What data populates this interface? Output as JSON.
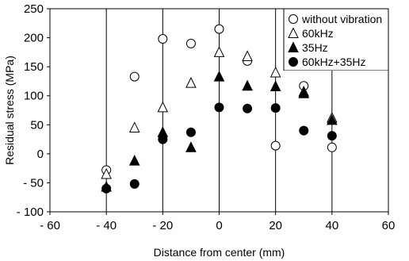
{
  "chart_data": {
    "type": "scatter",
    "xlabel": "Distance from center (mm)",
    "ylabel": "Residual stress (MPa)",
    "xlim": [
      -60,
      60
    ],
    "ylim": [
      -100,
      250
    ],
    "x_ticks": [
      -60,
      -40,
      -20,
      0,
      20,
      40,
      60
    ],
    "y_ticks": [
      -100,
      -50,
      0,
      50,
      100,
      150,
      200,
      250
    ],
    "x_tick_labels": [
      "- 60",
      "- 40",
      "- 20",
      "0",
      "20",
      "40",
      "60"
    ],
    "y_tick_labels": [
      "- 100",
      "- 50",
      "0",
      "50",
      "100",
      "150",
      "200",
      "250"
    ],
    "grid": "vertical",
    "legend_position": "top-right",
    "series": [
      {
        "name": "without vibration",
        "marker": "circle-open",
        "points": [
          [
            -40,
            -28
          ],
          [
            -30,
            133
          ],
          [
            -20,
            198
          ],
          [
            -10,
            190
          ],
          [
            0,
            215
          ],
          [
            10,
            160
          ],
          [
            20,
            14
          ],
          [
            30,
            117
          ],
          [
            40,
            11
          ]
        ]
      },
      {
        "name": "60kHz",
        "marker": "triangle-open",
        "points": [
          [
            -40,
            -35
          ],
          [
            -30,
            45
          ],
          [
            -20,
            80
          ],
          [
            -10,
            122
          ],
          [
            0,
            175
          ],
          [
            10,
            168
          ],
          [
            20,
            140
          ],
          [
            30,
            107
          ],
          [
            40,
            62
          ]
        ]
      },
      {
        "name": "35Hz",
        "marker": "triangle-filled",
        "points": [
          [
            -40,
            -57
          ],
          [
            -30,
            -12
          ],
          [
            -20,
            37
          ],
          [
            -10,
            11
          ],
          [
            0,
            133
          ],
          [
            10,
            117
          ],
          [
            20,
            116
          ],
          [
            30,
            104
          ],
          [
            40,
            58
          ]
        ]
      },
      {
        "name": "60kHz+35Hz",
        "marker": "circle-filled",
        "points": [
          [
            -40,
            -60
          ],
          [
            -30,
            -52
          ],
          [
            -20,
            25
          ],
          [
            -10,
            37
          ],
          [
            0,
            80
          ],
          [
            10,
            78
          ],
          [
            20,
            79
          ],
          [
            30,
            40
          ],
          [
            40,
            31
          ]
        ]
      }
    ]
  }
}
